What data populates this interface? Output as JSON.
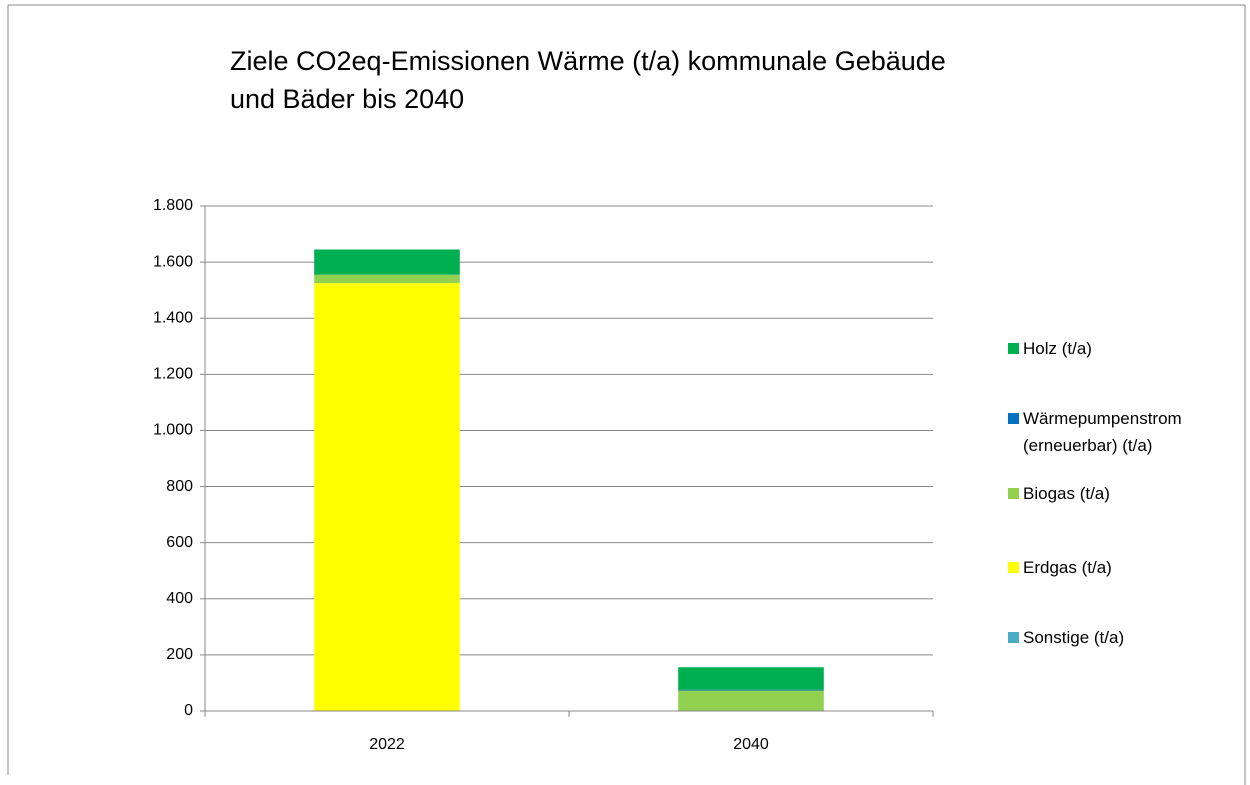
{
  "chart_data": {
    "type": "stacked-bar",
    "title": "Ziele CO2eq-Emissionen Wärme (t/a) kommunale Gebäude und Bäder bis 2040",
    "categories": [
      "2022",
      "2040"
    ],
    "series": [
      {
        "name": "Sonstige (t/a)",
        "color": "#4bacc6",
        "values": [
          0,
          0
        ]
      },
      {
        "name": "Erdgas (t/a)",
        "color": "#ffff00",
        "values": [
          1525,
          0
        ]
      },
      {
        "name": "Biogas (t/a)",
        "color": "#92d050",
        "values": [
          30,
          73
        ]
      },
      {
        "name": "Wärmepumpenstrom (erneuerbar) (t/a)",
        "color": "#0070c0",
        "values": [
          0,
          3
        ]
      },
      {
        "name": "Holz (t/a)",
        "color": "#00b050",
        "values": [
          90,
          80
        ]
      }
    ],
    "ylim": [
      0,
      1800
    ],
    "yticks": [
      0,
      200,
      400,
      600,
      800,
      {
        "value": 1000,
        "label": "1.000"
      },
      {
        "value": 1200,
        "label": "1.200"
      },
      {
        "value": 1400,
        "label": "1.400"
      },
      {
        "value": 1600,
        "label": "1.600"
      },
      {
        "value": 1800,
        "label": "1.800"
      }
    ],
    "grid": true,
    "legend": "right"
  }
}
